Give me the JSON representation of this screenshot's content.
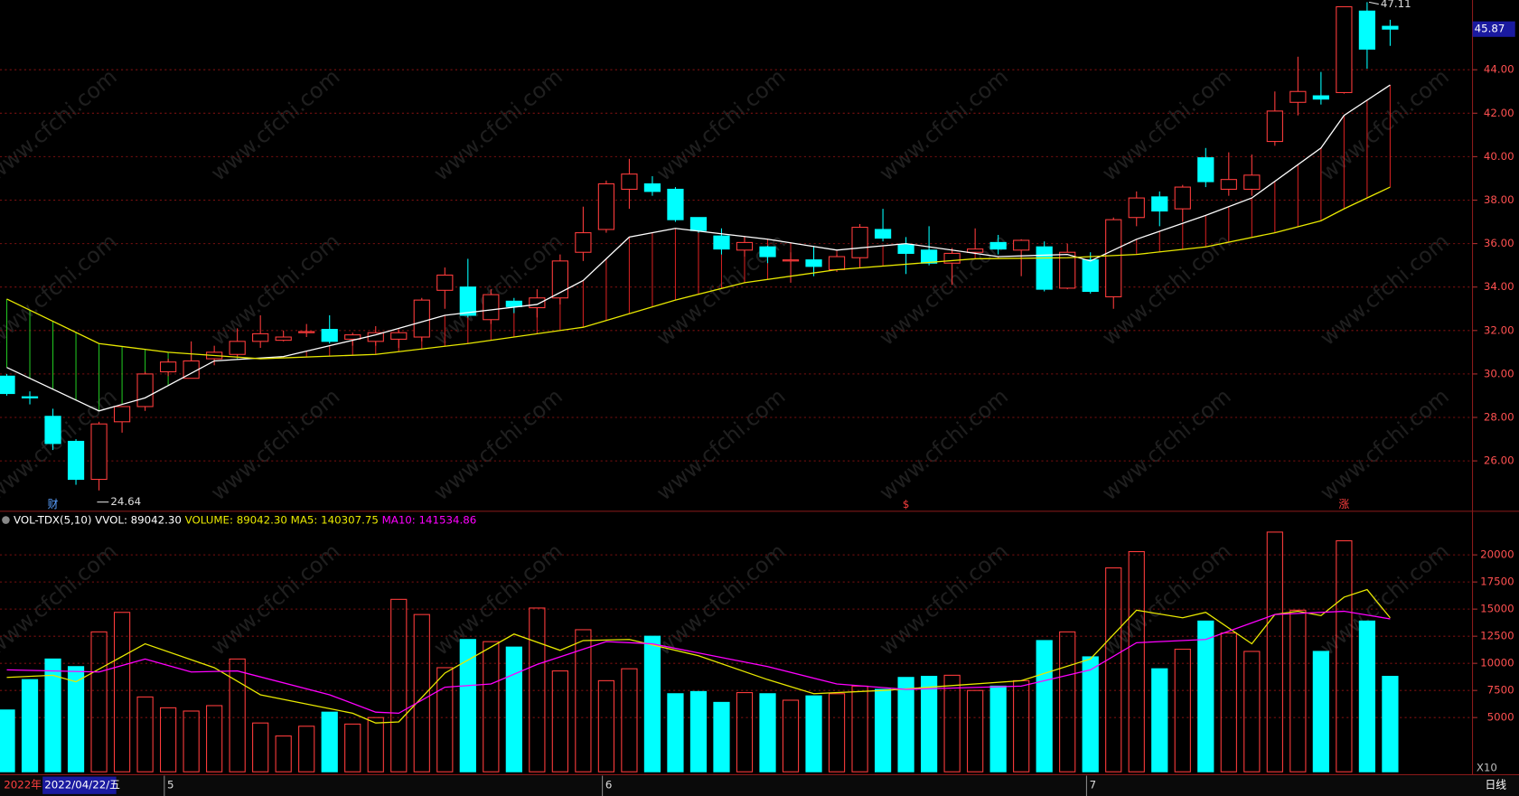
{
  "chart_data": [
    {
      "type": "candlestick",
      "open": [
        29.9,
        28.95,
        28.05,
        26.9,
        25.15,
        27.8,
        28.5,
        30.1,
        29.8,
        30.7,
        30.9,
        31.5,
        31.55,
        31.9,
        32.05,
        31.6,
        31.5,
        31.6,
        31.7,
        33.85,
        34.0,
        32.5,
        33.35,
        33.05,
        33.5,
        35.6,
        36.65,
        38.5,
        38.75,
        38.5,
        37.2,
        36.35,
        35.7,
        35.85,
        35.2,
        35.25,
        34.8,
        35.35,
        36.65,
        35.95,
        35.7,
        35.1,
        35.6,
        36.05,
        35.7,
        35.85,
        33.95,
        35.25,
        33.55,
        37.2,
        38.15,
        37.6,
        39.95,
        38.5,
        38.5,
        40.7,
        42.5,
        42.8,
        42.95,
        46.7,
        46.0
      ],
      "high": [
        30.0,
        29.2,
        28.4,
        27.0,
        27.8,
        28.5,
        30.1,
        30.7,
        31.5,
        31.3,
        32.1,
        32.7,
        32.0,
        32.3,
        32.7,
        31.9,
        32.2,
        32.0,
        33.5,
        34.9,
        35.3,
        33.9,
        33.5,
        33.9,
        35.5,
        37.7,
        38.9,
        39.9,
        39.1,
        38.6,
        37.2,
        36.7,
        36.3,
        35.9,
        35.6,
        35.9,
        35.5,
        36.9,
        37.6,
        36.3,
        36.8,
        35.8,
        36.7,
        36.4,
        36.2,
        36.1,
        36.0,
        35.6,
        37.2,
        38.4,
        38.4,
        38.7,
        40.4,
        40.2,
        40.1,
        43.0,
        44.6,
        43.9,
        46.9,
        47.11,
        46.3
      ],
      "low": [
        29.0,
        28.6,
        26.5,
        24.9,
        24.64,
        27.3,
        28.3,
        29.9,
        29.8,
        30.4,
        30.8,
        31.2,
        31.5,
        31.7,
        31.4,
        31.3,
        31.3,
        31.2,
        31.5,
        33.0,
        32.6,
        32.3,
        32.8,
        32.6,
        33.2,
        35.2,
        36.5,
        37.6,
        38.2,
        37.0,
        36.5,
        35.5,
        35.4,
        35.1,
        34.2,
        34.5,
        34.7,
        34.9,
        36.1,
        34.6,
        35.0,
        34.1,
        35.5,
        35.5,
        34.5,
        33.8,
        33.9,
        33.7,
        33.0,
        36.8,
        36.8,
        37.0,
        38.6,
        38.2,
        38.2,
        40.5,
        41.9,
        42.4,
        42.9,
        44.05,
        45.1
      ],
      "close": [
        29.1,
        28.9,
        26.8,
        25.15,
        27.7,
        28.5,
        30.0,
        30.55,
        30.6,
        31.0,
        31.5,
        31.85,
        31.7,
        31.95,
        31.5,
        31.8,
        31.9,
        31.9,
        33.4,
        34.55,
        32.7,
        33.65,
        33.1,
        33.5,
        35.2,
        36.5,
        38.75,
        39.2,
        38.4,
        37.1,
        36.6,
        35.75,
        36.05,
        35.4,
        35.25,
        34.95,
        35.4,
        36.75,
        36.25,
        35.55,
        35.1,
        35.55,
        35.75,
        35.75,
        36.15,
        33.9,
        35.6,
        33.8,
        37.1,
        38.1,
        37.5,
        38.6,
        38.85,
        38.95,
        39.15,
        42.1,
        43.0,
        42.65,
        46.9,
        44.95,
        45.87
      ],
      "up_color": "#ff3c3c",
      "down_color": "#00ffff",
      "ylim": [
        23.68,
        47.21
      ],
      "yticks": [
        {
          "value": 26,
          "label": "26.00"
        },
        {
          "value": 28,
          "label": "28.00"
        },
        {
          "value": 30,
          "label": "30.00"
        },
        {
          "value": 32,
          "label": "32.00"
        },
        {
          "value": 34,
          "label": "34.00"
        },
        {
          "value": 36,
          "label": "36.00"
        },
        {
          "value": 38,
          "label": "38.00"
        },
        {
          "value": 40,
          "label": "40.00"
        },
        {
          "value": 42,
          "label": "42.00"
        },
        {
          "value": 44,
          "label": "44.00"
        }
      ],
      "grid": true,
      "ma": [
        {
          "color": "#ffffff",
          "x": [
            0,
            4,
            6,
            9,
            12,
            16,
            19,
            23,
            25,
            27,
            29,
            33,
            36,
            39,
            43,
            46,
            47,
            49,
            52,
            54,
            57,
            58,
            60
          ],
          "values": [
            30.3,
            28.3,
            28.9,
            30.6,
            30.8,
            31.8,
            32.7,
            33.2,
            34.3,
            36.3,
            36.7,
            36.2,
            35.7,
            36.0,
            35.4,
            35.5,
            35.2,
            36.2,
            37.3,
            38.1,
            40.4,
            41.9,
            43.3
          ]
        },
        {
          "color": "#e8e800",
          "x": [
            0,
            4,
            7,
            11,
            16,
            20,
            25,
            29,
            32,
            36,
            42,
            46,
            49,
            52,
            55,
            57,
            58,
            60
          ],
          "values": [
            33.45,
            31.4,
            31.0,
            30.7,
            30.9,
            31.4,
            32.15,
            33.4,
            34.2,
            34.8,
            35.3,
            35.35,
            35.5,
            35.85,
            36.5,
            37.05,
            37.6,
            38.6
          ]
        }
      ],
      "markers": [
        {
          "x": 2,
          "label": "财"
        },
        {
          "x": 39,
          "label": "$"
        },
        {
          "x": 58,
          "label": "涨"
        }
      ]
    },
    {
      "type": "bar",
      "title": "VOL-TDX(5,10)",
      "stats": [
        {
          "label": "VVOL: 89042.30",
          "color": "#ffffff"
        },
        {
          "label": "VOLUME: 89042.30",
          "color": "#e8e800"
        },
        {
          "label": "MA5: 140307.75",
          "color": "#e8e800"
        },
        {
          "label": "MA10: 141534.86",
          "color": "#ff00ff"
        }
      ],
      "values": [
        5700,
        8500,
        10400,
        9700,
        12900,
        14700,
        6900,
        5900,
        5600,
        6100,
        10400,
        4500,
        3300,
        4200,
        5500,
        4400,
        5000,
        15900,
        14500,
        9600,
        12200,
        12000,
        11500,
        15100,
        9300,
        13100,
        8400,
        9500,
        12500,
        7200,
        7400,
        6400,
        7300,
        7200,
        6600,
        7000,
        7200,
        7900,
        7600,
        8700,
        8800,
        8900,
        7500,
        7900,
        8400,
        12100,
        12900,
        10600,
        18800,
        20300,
        9500,
        11300,
        13900,
        12800,
        11100,
        22100,
        14900,
        11100,
        21300,
        13900,
        8800
      ],
      "ylim": [
        -268,
        24018
      ],
      "yticks": [
        5000,
        7500,
        10000,
        12500,
        15000,
        17500,
        20000
      ],
      "grid": true,
      "ma": [
        {
          "color": "#e8e800",
          "x": [
            0,
            2,
            3,
            6,
            9,
            11,
            15,
            16,
            17,
            19,
            22,
            24,
            25,
            27,
            30,
            33,
            35,
            38,
            44,
            47,
            49,
            51,
            52,
            54,
            55,
            56,
            57,
            58,
            59,
            60
          ],
          "values": [
            8700,
            8900,
            8300,
            11800,
            9600,
            7100,
            5400,
            4500,
            4600,
            9100,
            12700,
            11200,
            12100,
            12200,
            10700,
            8500,
            7200,
            7500,
            8400,
            10400,
            14900,
            14200,
            14700,
            11800,
            14500,
            14800,
            14400,
            16100,
            16800,
            14200
          ]
        },
        {
          "color": "#ff00ff",
          "x": [
            0,
            4,
            6,
            8,
            10,
            14,
            16,
            17,
            19,
            21,
            23,
            26,
            28,
            33,
            36,
            39,
            44,
            47,
            49,
            52,
            55,
            57,
            58,
            60
          ],
          "values": [
            9400,
            9200,
            10400,
            9200,
            9300,
            7100,
            5500,
            5400,
            7800,
            8100,
            9900,
            12000,
            11800,
            9700,
            8100,
            7600,
            7900,
            9400,
            11900,
            12200,
            14500,
            14700,
            14800,
            14100
          ]
        }
      ],
      "scale_label": "X10",
      "period_label": "日线",
      "year_label": "2022年",
      "date_label": "2022/04/22/五",
      "months": [
        {
          "x": 7,
          "label": "5"
        },
        {
          "x": 26,
          "label": "6"
        },
        {
          "x": 47,
          "label": "7"
        }
      ]
    }
  ],
  "watermark": "www.cfchi.com"
}
